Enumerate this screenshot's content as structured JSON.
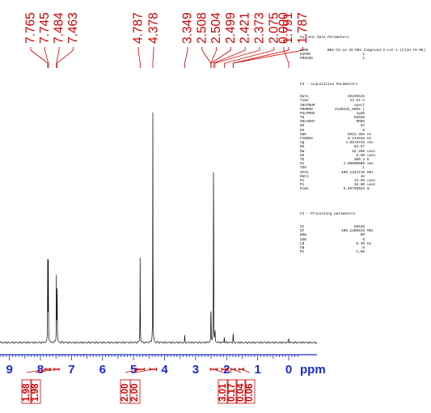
{
  "chart_data": {
    "type": "nmr_spectrum",
    "xlabel": "ppm",
    "xlim": [
      9.4,
      -0.35
    ],
    "x_ticks": [
      "9",
      "8",
      "7",
      "6",
      "5",
      "4",
      "3",
      "2",
      "1",
      "0"
    ],
    "peak_labels": [
      "7.765",
      "7.745",
      "7.484",
      "7.463",
      "4.787",
      "4.378",
      "3.349",
      "2.508",
      "2.504",
      "2.499",
      "2.421",
      "2.373",
      "2.075",
      "1.791",
      "1.787",
      "0.000"
    ],
    "peaks": [
      {
        "ppm": 7.765,
        "height": 0.35
      },
      {
        "ppm": 7.745,
        "height": 0.36
      },
      {
        "ppm": 7.484,
        "height": 0.31
      },
      {
        "ppm": 7.463,
        "height": 0.3
      },
      {
        "ppm": 4.787,
        "height": 0.4
      },
      {
        "ppm": 4.378,
        "height": 1.0
      },
      {
        "ppm": 3.349,
        "height": 0.03
      },
      {
        "ppm": 2.508,
        "height": 0.07
      },
      {
        "ppm": 2.504,
        "height": 0.08
      },
      {
        "ppm": 2.499,
        "height": 0.06
      },
      {
        "ppm": 2.421,
        "height": 0.96
      },
      {
        "ppm": 2.373,
        "height": 0.05
      },
      {
        "ppm": 2.075,
        "height": 0.03
      },
      {
        "ppm": 1.791,
        "height": 0.03
      },
      {
        "ppm": 1.787,
        "height": 0.02
      },
      {
        "ppm": 0.0,
        "height": 0.02
      }
    ],
    "integrals": [
      {
        "range": [
          7.85,
          7.68
        ],
        "value": "1.98"
      },
      {
        "range": [
          7.56,
          7.4
        ],
        "value": "1.98"
      },
      {
        "range": [
          4.9,
          4.65
        ],
        "value": "2.00"
      },
      {
        "range": [
          4.48,
          4.26
        ],
        "value": "2.00"
      },
      {
        "range": [
          2.52,
          2.3
        ],
        "value": "3.01"
      },
      {
        "range": [
          2.16,
          2.0
        ],
        "value": "0.17"
      },
      {
        "range": [
          1.86,
          1.72
        ],
        "value": "0.04"
      },
      {
        "range": [
          1.6,
          1.45
        ],
        "value": "0.06"
      }
    ],
    "colors": {
      "spectrum": "#000000",
      "labels": "#cc0000",
      "axis": "#1a2bd0"
    }
  },
  "parameters": {
    "current_title": "Current Data Parameters",
    "current": [
      [
        "NAME",
        "BNI-CS-12-25-D01 Compound-2-Lot-1 (C)1H-74-95)",
        ""
      ],
      [
        "EXPNO",
        "1",
        ""
      ],
      [
        "PROCNO",
        "1",
        ""
      ]
    ],
    "f2_acq_title": "F2 - Acquisition Parameters",
    "f2_acq": [
      [
        "Date_",
        "20230425",
        ""
      ],
      [
        "Time",
        "22.54 h",
        ""
      ],
      [
        "INSTRUM",
        "spect",
        ""
      ],
      [
        "PROBHD",
        "Z130432_0004 (",
        ""
      ],
      [
        "PULPROG",
        "zg30",
        ""
      ],
      [
        "TD",
        "65536",
        ""
      ],
      [
        "SOLVENT",
        "DMSO",
        ""
      ],
      [
        "NS",
        "32",
        ""
      ],
      [
        "DS",
        "0",
        ""
      ],
      [
        "SWH",
        "8013.365",
        "Hz"
      ],
      [
        "FIDRES",
        "0.244548",
        "Hz"
      ],
      [
        "AQ",
        "4.0878725",
        "sec"
      ],
      [
        "RG",
        "64.57",
        ""
      ],
      [
        "DW",
        "62.400",
        "usec"
      ],
      [
        "DE",
        "6.50",
        "usec"
      ],
      [
        "TE",
        "300.4",
        "K"
      ],
      [
        "D1",
        "1.00000000",
        "sec"
      ],
      [
        "TD0",
        "1",
        ""
      ],
      [
        "SFO1",
        "400.1324710",
        "MHz"
      ],
      [
        "NUC1",
        "1H",
        ""
      ],
      [
        "P1",
        "13.60",
        "usec"
      ],
      [
        "P1",
        "10.00",
        "usec"
      ],
      [
        "PLW1",
        "8.89759023",
        "W"
      ]
    ],
    "f2_proc_title": "F2 - Processing parameters",
    "f2_proc": [
      [
        "SI",
        "65536",
        ""
      ],
      [
        "SF",
        "400.1300019",
        "MHz"
      ],
      [
        "WDW",
        "EM",
        ""
      ],
      [
        "SSB",
        "0",
        ""
      ],
      [
        "LB",
        "0.30",
        "Hz"
      ],
      [
        "GB",
        "0",
        ""
      ],
      [
        "PC",
        "1.00",
        ""
      ]
    ]
  }
}
